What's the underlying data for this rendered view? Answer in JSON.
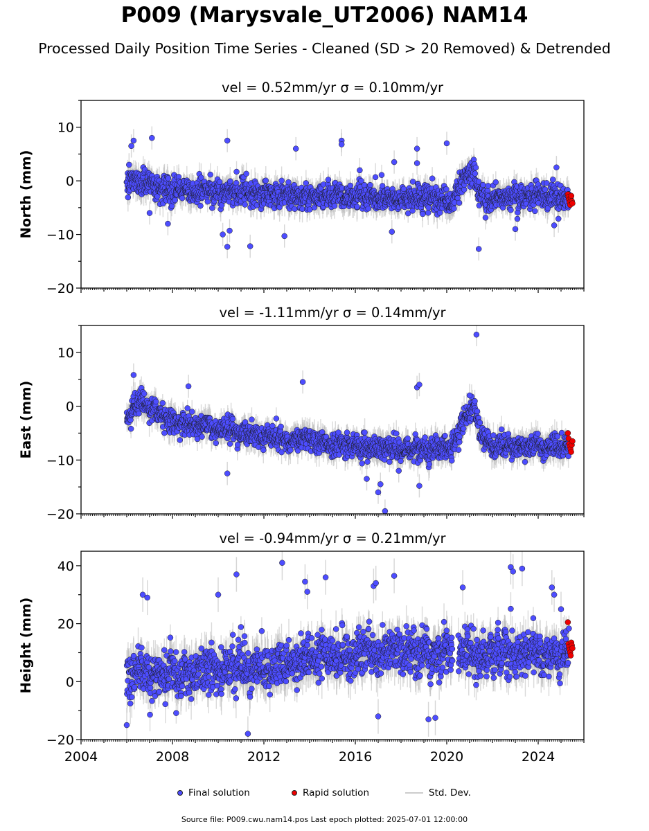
{
  "title": "P009 (Marysvale_UT2006) NAM14",
  "subtitle": "Processed Daily Position Time Series - Cleaned (SD > 20 Removed) & Detrended",
  "legend": {
    "final": "Final solution",
    "rapid": "Rapid solution",
    "sd": "Std. Dev."
  },
  "footer": "Source file: P009.cwu.nam14.pos  Last epoch plotted: 2025-07-01 12:00:00",
  "colors": {
    "final": "#4d4dff",
    "rapid": "#ee0000",
    "sd": "#bbbbbb",
    "edge": "#1a1a1a"
  },
  "chart_data": [
    {
      "type": "scatter",
      "panel_title": "vel = 0.52mm/yr   σ = 0.10mm/yr",
      "ylabel": "North (mm)",
      "xlim": [
        2004,
        2026
      ],
      "ylim": [
        -20,
        15
      ],
      "yticks": [
        -20,
        -10,
        0,
        10
      ],
      "ytick_labels": [
        "−20",
        "−10",
        "0",
        "10"
      ],
      "xticks": [
        2004,
        2008,
        2012,
        2016,
        2020,
        2024
      ],
      "xtick_labels": [],
      "data_range": [
        2006.0,
        2025.5
      ],
      "series": [
        {
          "name": "Final solution",
          "trend": [
            [
              2006.0,
              0.5
            ],
            [
              2008,
              -1.5
            ],
            [
              2012,
              -2.5
            ],
            [
              2016,
              -3.0
            ],
            [
              2019,
              -3.5
            ],
            [
              2020.2,
              -4.0
            ],
            [
              2020.8,
              0.5
            ],
            [
              2021.2,
              2.0
            ],
            [
              2021.4,
              -3.0
            ],
            [
              2024,
              -3.0
            ],
            [
              2025.4,
              -3.5
            ]
          ],
          "scatter": 2.0,
          "std": 1.8,
          "outliers": [
            [
              2006.1,
              3.0
            ],
            [
              2006.2,
              6.5
            ],
            [
              2006.3,
              7.5
            ],
            [
              2007.0,
              -6.0
            ],
            [
              2007.1,
              8.0
            ],
            [
              2007.8,
              -8.0
            ],
            [
              2010.4,
              7.5
            ],
            [
              2010.4,
              -12.3
            ],
            [
              2010.5,
              -9.3
            ],
            [
              2010.2,
              -10.0
            ],
            [
              2011.4,
              -12.2
            ],
            [
              2012.9,
              -10.3
            ],
            [
              2013.4,
              6.0
            ],
            [
              2015.4,
              7.5
            ],
            [
              2015.4,
              6.8
            ],
            [
              2017.7,
              3.5
            ],
            [
              2017.6,
              -9.5
            ],
            [
              2018.7,
              6.0
            ],
            [
              2018.7,
              3.3
            ],
            [
              2020.0,
              7.0
            ],
            [
              2021.4,
              -12.7
            ],
            [
              2023.0,
              -9.0
            ],
            [
              2024.7,
              -8.3
            ],
            [
              2024.8,
              2.5
            ]
          ]
        },
        {
          "name": "Rapid solution",
          "x_start": 2025.3,
          "x_end": 2025.5,
          "values": [
            -2.5,
            -3.0,
            -3.5,
            -4.0,
            -4.5,
            -3.2,
            -2.8,
            -3.8,
            -4.2
          ]
        }
      ]
    },
    {
      "type": "scatter",
      "panel_title": "vel = -1.11mm/yr   σ = 0.14mm/yr",
      "ylabel": "East (mm)",
      "xlim": [
        2004,
        2026
      ],
      "ylim": [
        -20,
        15
      ],
      "yticks": [
        -20,
        -10,
        0,
        10
      ],
      "ytick_labels": [
        "−20",
        "−10",
        "0",
        "10"
      ],
      "xticks": [
        2004,
        2008,
        2012,
        2016,
        2020,
        2024
      ],
      "xtick_labels": [],
      "data_range": [
        2006.0,
        2025.5
      ],
      "series": [
        {
          "name": "Final solution",
          "trend": [
            [
              2006.0,
              -2.0
            ],
            [
              2006.5,
              1.0
            ],
            [
              2008,
              -3.0
            ],
            [
              2012,
              -5.5
            ],
            [
              2016,
              -7.5
            ],
            [
              2019,
              -8.0
            ],
            [
              2020.3,
              -7.5
            ],
            [
              2020.8,
              -2.0
            ],
            [
              2021.2,
              0.0
            ],
            [
              2021.5,
              -5.0
            ],
            [
              2022,
              -7.5
            ],
            [
              2025.4,
              -7.5
            ]
          ],
          "scatter": 1.8,
          "std": 1.8,
          "outliers": [
            [
              2006.3,
              5.8
            ],
            [
              2008.7,
              3.7
            ],
            [
              2010.4,
              -12.5
            ],
            [
              2013.7,
              4.5
            ],
            [
              2016.5,
              -13.5
            ],
            [
              2017.0,
              -16.0
            ],
            [
              2017.1,
              -14.5
            ],
            [
              2017.3,
              -19.5
            ],
            [
              2017.9,
              -12.0
            ],
            [
              2018.8,
              -14.8
            ],
            [
              2018.7,
              3.5
            ],
            [
              2018.8,
              4.0
            ],
            [
              2021.3,
              13.3
            ],
            [
              2021.0,
              2.0
            ]
          ]
        },
        {
          "name": "Rapid solution",
          "x_start": 2025.3,
          "x_end": 2025.5,
          "values": [
            -5.0,
            -6.0,
            -7.0,
            -7.5,
            -8.0,
            -8.5,
            -7.2,
            -6.5
          ]
        }
      ]
    },
    {
      "type": "scatter",
      "panel_title": "vel = -0.94mm/yr   σ = 0.21mm/yr",
      "ylabel": "Height (mm)",
      "xlim": [
        2004,
        2026
      ],
      "ylim": [
        -20,
        45
      ],
      "yticks": [
        -20,
        0,
        20,
        40
      ],
      "ytick_labels": [
        "−20",
        "0",
        "20",
        "40"
      ],
      "xticks": [
        2004,
        2008,
        2012,
        2016,
        2020,
        2024
      ],
      "xtick_labels": [
        "2004",
        "2008",
        "2012",
        "2016",
        "2020",
        "2024"
      ],
      "data_range": [
        2006.0,
        2025.5
      ],
      "series": [
        {
          "name": "Final solution",
          "trend": [
            [
              2006.0,
              2.0
            ],
            [
              2008,
              2.0
            ],
            [
              2010,
              4.0
            ],
            [
              2012,
              6.0
            ],
            [
              2016,
              10.0
            ],
            [
              2020,
              10.0
            ],
            [
              2024,
              10.0
            ],
            [
              2025.4,
              10.0
            ]
          ],
          "scatter": 6.5,
          "std": 5.0,
          "outliers": [
            [
              2006.0,
              -15.0
            ],
            [
              2006.7,
              30.0
            ],
            [
              2006.9,
              29.0
            ],
            [
              2010.0,
              30.0
            ],
            [
              2010.8,
              37.0
            ],
            [
              2011.3,
              -18.0
            ],
            [
              2012.8,
              41.0
            ],
            [
              2013.8,
              34.5
            ],
            [
              2013.9,
              31.0
            ],
            [
              2014.7,
              36.0
            ],
            [
              2016.8,
              33.0
            ],
            [
              2016.9,
              34.0
            ],
            [
              2017.0,
              -12.0
            ],
            [
              2017.7,
              36.5
            ],
            [
              2019.2,
              -13.0
            ],
            [
              2019.5,
              -12.5
            ],
            [
              2020.7,
              32.5
            ],
            [
              2022.8,
              39.5
            ],
            [
              2022.9,
              38.0
            ],
            [
              2023.3,
              39.0
            ],
            [
              2024.6,
              32.5
            ],
            [
              2024.7,
              30.0
            ],
            [
              2025.0,
              25.0
            ]
          ]
        },
        {
          "name": "Rapid solution",
          "x_start": 2025.3,
          "x_end": 2025.5,
          "values": [
            20.5,
            13.0,
            12.0,
            11.0,
            10.0,
            9.0,
            13.5,
            12.5,
            11.5
          ]
        }
      ]
    }
  ]
}
